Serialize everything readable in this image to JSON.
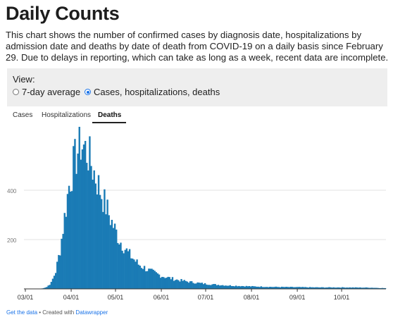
{
  "header": {
    "title": "Daily Counts",
    "description": "This chart shows the number of confirmed cases by diagnosis date, hospitalizations by admission date and deaths by date of death from COVID-19 on a daily basis since February 29. Due to delays in reporting, which can take as long as a week, recent data are incomplete."
  },
  "view": {
    "label": "View:",
    "options": [
      {
        "label": "7-day average",
        "selected": false
      },
      {
        "label": "Cases, hospitalizations, deaths",
        "selected": true
      }
    ]
  },
  "tabs": [
    {
      "label": "Cases",
      "active": false
    },
    {
      "label": "Hospitalizations",
      "active": false
    },
    {
      "label": "Deaths",
      "active": true
    }
  ],
  "footer": {
    "get_data": "Get the data",
    "separator": " • Created with ",
    "tool": "Datawrapper"
  },
  "colors": {
    "bar": "#1a7bb5",
    "accent": "#1a73e8"
  },
  "chart_data": {
    "type": "bar",
    "x_start": "2020-03-01",
    "x_end": "2020-10-30",
    "x_tick_labels": [
      "03/01",
      "04/01",
      "05/01",
      "06/01",
      "07/01",
      "08/01",
      "09/01",
      "10/01"
    ],
    "y_tick_labels": [
      "200",
      "400"
    ],
    "ylim": [
      0,
      600
    ],
    "grid": true,
    "anchors": [
      [
        "2020-03-01",
        0
      ],
      [
        "2020-03-10",
        0
      ],
      [
        "2020-03-12",
        2
      ],
      [
        "2020-03-15",
        8
      ],
      [
        "2020-03-18",
        25
      ],
      [
        "2020-03-21",
        70
      ],
      [
        "2020-03-24",
        160
      ],
      [
        "2020-03-27",
        290
      ],
      [
        "2020-03-30",
        420
      ],
      [
        "2020-04-02",
        500
      ],
      [
        "2020-04-05",
        560
      ],
      [
        "2020-04-07",
        590
      ],
      [
        "2020-04-09",
        575
      ],
      [
        "2020-04-12",
        545
      ],
      [
        "2020-04-15",
        490
      ],
      [
        "2020-04-19",
        420
      ],
      [
        "2020-04-23",
        350
      ],
      [
        "2020-04-28",
        270
      ],
      [
        "2020-05-03",
        200
      ],
      [
        "2020-05-09",
        145
      ],
      [
        "2020-05-16",
        100
      ],
      [
        "2020-05-23",
        75
      ],
      [
        "2020-06-01",
        52
      ],
      [
        "2020-06-10",
        38
      ],
      [
        "2020-06-20",
        28
      ],
      [
        "2020-07-01",
        20
      ],
      [
        "2020-07-15",
        14
      ],
      [
        "2020-08-01",
        10
      ],
      [
        "2020-08-15",
        8
      ],
      [
        "2020-09-01",
        7
      ],
      [
        "2020-09-15",
        6
      ],
      [
        "2020-10-01",
        6
      ],
      [
        "2020-10-20",
        5
      ],
      [
        "2020-10-30",
        3
      ]
    ]
  }
}
